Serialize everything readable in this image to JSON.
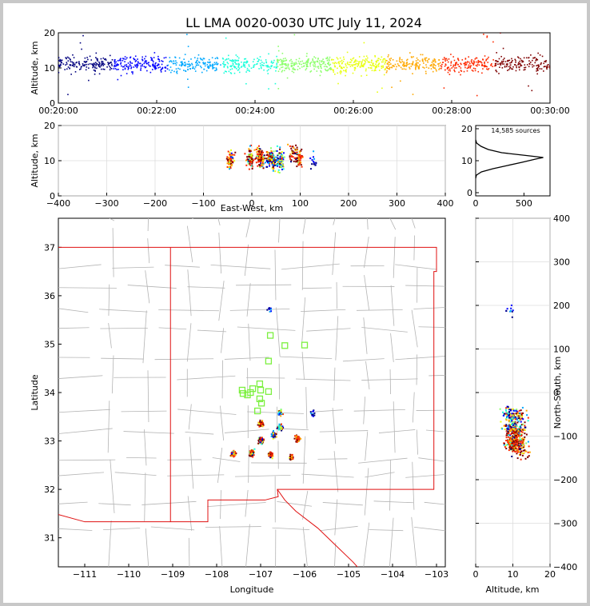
{
  "chart_data": {
    "type": "scatter",
    "title": "LL LMA 0020-0030 UTC July 11, 2024",
    "source_count_label": "14,585 sources",
    "colormap": [
      "#00007f",
      "#0000ff",
      "#00a8ff",
      "#1cffdb",
      "#8cff6b",
      "#e8ff0f",
      "#ffa800",
      "#ff2a00",
      "#7f0000"
    ],
    "state_line_color": "#e01010",
    "county_line_color": "#b4b4b4",
    "station_color": "#7cf040",
    "panels": {
      "time_altitude": {
        "ylabel": "Altitude, km",
        "xlim_minutes": [
          0,
          10
        ],
        "ylim": [
          0,
          20
        ],
        "xticks": [
          "00:20:00",
          "00:22:00",
          "00:24:00",
          "00:26:00",
          "00:28:00",
          "00:30:00"
        ],
        "yticks": [
          "0",
          "10",
          "20"
        ],
        "band_center_km": 11,
        "band_spread_km": 2.2
      },
      "east_west_altitude": {
        "xlabel": "East-West, km",
        "ylabel": "Altitude, km",
        "xlim": [
          -400,
          400
        ],
        "ylim": [
          0,
          20
        ],
        "xticks": [
          "−400",
          "−300",
          "−200",
          "−100",
          "0",
          "100",
          "200",
          "300",
          "400"
        ],
        "yticks": [
          "0",
          "10",
          "20"
        ]
      },
      "histogram": {
        "xlim": [
          0,
          770
        ],
        "ylim": [
          -1,
          21
        ],
        "xticks": [
          "0",
          "500"
        ],
        "yticks": [
          "0",
          "10",
          "20"
        ],
        "profile": [
          {
            "alt": 4.5,
            "count": 0
          },
          {
            "alt": 5.5,
            "count": 8
          },
          {
            "alt": 6.5,
            "count": 60
          },
          {
            "alt": 7.5,
            "count": 180
          },
          {
            "alt": 8.5,
            "count": 330
          },
          {
            "alt": 9.5,
            "count": 480
          },
          {
            "alt": 10.5,
            "count": 620
          },
          {
            "alt": 11.0,
            "count": 700
          },
          {
            "alt": 11.5,
            "count": 560
          },
          {
            "alt": 12.5,
            "count": 270
          },
          {
            "alt": 13.5,
            "count": 130
          },
          {
            "alt": 14.5,
            "count": 55
          },
          {
            "alt": 15.5,
            "count": 10
          },
          {
            "alt": 16.5,
            "count": 0
          }
        ]
      },
      "plan_view": {
        "xlabel": "Longitude",
        "ylabel": "Latitude",
        "xlim": [
          -111.6,
          -102.8
        ],
        "ylim": [
          30.4,
          37.6
        ],
        "xticks": [
          "−111",
          "−110",
          "−109",
          "−108",
          "−107",
          "−106",
          "−105",
          "−104",
          "−103"
        ],
        "yticks": [
          "31",
          "32",
          "33",
          "34",
          "35",
          "36",
          "37"
        ]
      },
      "altitude_north_south": {
        "xlabel": "Altitude, km",
        "ylabel": "North-South, km",
        "xlim": [
          0,
          20
        ],
        "ylim": [
          -400,
          400
        ],
        "xticks": [
          "0",
          "10",
          "20"
        ],
        "yticks": [
          "−400",
          "−300",
          "−200",
          "−100",
          "0",
          "100",
          "200",
          "300",
          "400"
        ]
      }
    },
    "cells": [
      {
        "lon": -107.62,
        "lat": 32.73,
        "ew": -45,
        "ns": -120,
        "alt": 10,
        "n": 60,
        "color_bias": "late"
      },
      {
        "lon": -107.2,
        "lat": 32.75,
        "ew": -3,
        "ns": -118,
        "alt": 11,
        "n": 70,
        "color_bias": "late"
      },
      {
        "lon": -106.99,
        "lat": 33.0,
        "ew": 17,
        "ns": -90,
        "alt": 11,
        "n": 90,
        "color_bias": "late"
      },
      {
        "lon": -106.99,
        "lat": 33.35,
        "ew": 17,
        "ns": -52,
        "alt": 11,
        "n": 40,
        "color_bias": "late"
      },
      {
        "lon": -106.78,
        "lat": 32.72,
        "ew": 38,
        "ns": -122,
        "alt": 11,
        "n": 60,
        "color_bias": "late"
      },
      {
        "lon": -106.7,
        "lat": 33.12,
        "ew": 45,
        "ns": -78,
        "alt": 10,
        "n": 60,
        "color_bias": "mixed"
      },
      {
        "lon": -106.55,
        "lat": 33.28,
        "ew": 60,
        "ns": -60,
        "alt": 10,
        "n": 50,
        "color_bias": "mixed"
      },
      {
        "lon": -106.55,
        "lat": 33.58,
        "ew": 60,
        "ns": -45,
        "alt": 9,
        "n": 30,
        "color_bias": "mixed"
      },
      {
        "lon": -106.15,
        "lat": 33.05,
        "ew": 97,
        "ns": -102,
        "alt": 11,
        "n": 70,
        "color_bias": "late"
      },
      {
        "lon": -106.3,
        "lat": 32.66,
        "ew": 85,
        "ns": -140,
        "alt": 12,
        "n": 30,
        "color_bias": "late"
      },
      {
        "lon": -105.82,
        "lat": 33.55,
        "ew": 128,
        "ns": -45,
        "alt": 9,
        "n": 15,
        "color_bias": "early"
      },
      {
        "lon": -106.8,
        "lat": 35.72,
        "ew": 35,
        "ns": 190,
        "alt": 9,
        "n": 10,
        "color_bias": "early"
      }
    ],
    "stations": [
      {
        "lon": -106.78,
        "lat": 35.18
      },
      {
        "lon": -106.45,
        "lat": 34.97
      },
      {
        "lon": -106.0,
        "lat": 34.98
      },
      {
        "lon": -106.82,
        "lat": 34.65
      },
      {
        "lon": -107.02,
        "lat": 34.18
      },
      {
        "lon": -107.0,
        "lat": 34.05
      },
      {
        "lon": -107.18,
        "lat": 34.08
      },
      {
        "lon": -107.23,
        "lat": 34.0
      },
      {
        "lon": -107.4,
        "lat": 33.98
      },
      {
        "lon": -107.3,
        "lat": 33.95
      },
      {
        "lon": -107.42,
        "lat": 34.05
      },
      {
        "lon": -107.02,
        "lat": 33.87
      },
      {
        "lon": -106.82,
        "lat": 34.02
      },
      {
        "lon": -106.98,
        "lat": 33.78
      },
      {
        "lon": -107.07,
        "lat": 33.62
      }
    ]
  }
}
